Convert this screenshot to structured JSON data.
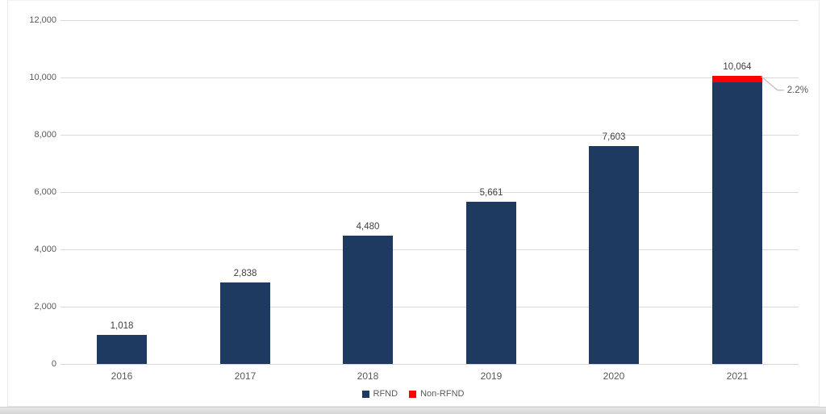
{
  "chart_data": {
    "type": "bar",
    "stacked": true,
    "title": "",
    "categories": [
      "2016",
      "2017",
      "2018",
      "2019",
      "2020",
      "2021"
    ],
    "series": [
      {
        "name": "RFND",
        "color": "#1f3a60",
        "values": [
          1018,
          2838,
          4480,
          5661,
          7603,
          9843
        ]
      },
      {
        "name": "Non-RFND",
        "color": "#ff0000",
        "values": [
          0,
          0,
          0,
          0,
          0,
          221
        ]
      }
    ],
    "totals": [
      1018,
      2838,
      4480,
      5661,
      7603,
      10064
    ],
    "totals_formatted": [
      "1,018",
      "2,838",
      "4,480",
      "5,661",
      "7,603",
      "10,064"
    ],
    "y_axis": {
      "min": 0,
      "max": 12000,
      "step": 2000,
      "tick_labels": [
        "0",
        "2,000",
        "4,000",
        "6,000",
        "8,000",
        "10,000",
        "12,000"
      ]
    },
    "gridlines": true,
    "legend_position": "bottom",
    "legend": [
      {
        "label": "RFND",
        "color": "#1f3a60"
      },
      {
        "label": "Non-RFND",
        "color": "#ff0000"
      }
    ],
    "annotation": {
      "text": "2.2%",
      "target": "2021 Non-RFND segment"
    }
  },
  "colors": {
    "bar_primary": "#1f3a60",
    "bar_secondary": "#ff0000",
    "gridline": "#d9d9d9",
    "tick_text": "#595959",
    "value_text": "#3f3f3f",
    "leader_line": "#bfbfbf"
  }
}
